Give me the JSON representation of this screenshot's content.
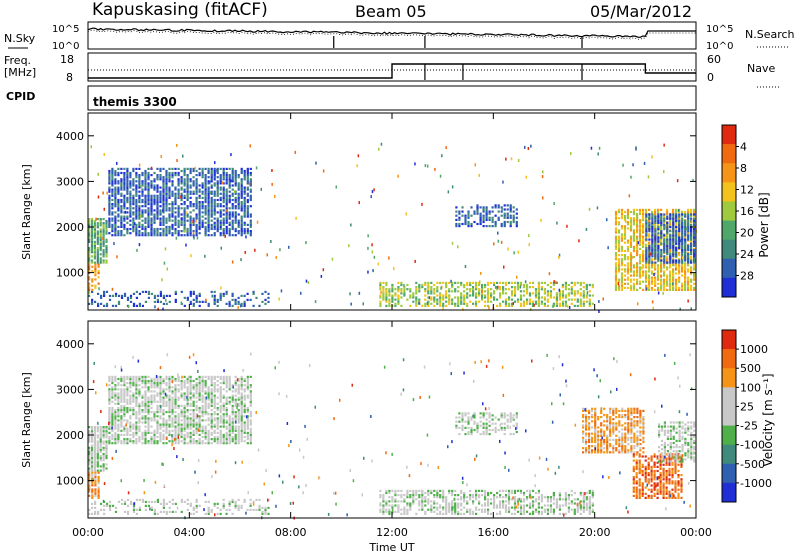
{
  "header": {
    "station": "Kapuskasing (fitACF)",
    "beam": "Beam 05",
    "date": "05/Mar/2012"
  },
  "noise_panel": {
    "left_label": "N.Sky",
    "right_label": "N.Search",
    "left_ticks": [
      "10^5",
      "10^0"
    ],
    "right_ticks": [
      "10^5",
      "10^0"
    ]
  },
  "freq_panel": {
    "left_label_1": "Freq.",
    "left_label_2": "[MHz]",
    "right_label": "Nave",
    "left_ticks": [
      "18",
      "8"
    ],
    "right_ticks": [
      "60",
      "0"
    ]
  },
  "cpid_panel": {
    "label": "CPID",
    "program": "themis 3300"
  },
  "colors": {
    "power_scale": [
      "#1f2fd6",
      "#2e5fb0",
      "#3f8a7a",
      "#4fa86a",
      "#9fc93e",
      "#f3c21c",
      "#f59416",
      "#f06a10",
      "#e02a10"
    ],
    "velocity_scale": [
      "#1f2fd6",
      "#2e5fb0",
      "#3f8a7a",
      "#4fb04a",
      "#c8c8c8",
      "#c8c8c8",
      "#f59416",
      "#f06a10",
      "#e02a10"
    ]
  },
  "chart_data": [
    {
      "type": "heatmap",
      "name": "power",
      "ylabel": "Slant Range [km]",
      "ylim": [
        180,
        4500
      ],
      "yticks": [
        "1000",
        "2000",
        "3000",
        "4000"
      ],
      "colorbar_label": "Power [dB]",
      "colorbar_ticks": [
        "4",
        "8",
        "12",
        "16",
        "20",
        "24",
        "28"
      ],
      "regions": [
        {
          "t0": 0.0,
          "t1": 7.2,
          "r0": 250,
          "r1": 600,
          "color_index": 1,
          "density": 0.35
        },
        {
          "t0": 0.0,
          "t1": 0.8,
          "r0": 1200,
          "r1": 2200,
          "color_index": 3,
          "density": 0.85
        },
        {
          "t0": 0.8,
          "t1": 6.5,
          "r0": 1800,
          "r1": 3300,
          "color_index": 1,
          "density": 0.75
        },
        {
          "t0": 0.0,
          "t1": 0.5,
          "r0": 600,
          "r1": 1200,
          "color_index": 6,
          "density": 0.6
        },
        {
          "t0": 11.5,
          "t1": 20.0,
          "r0": 250,
          "r1": 800,
          "color_index": 4,
          "density": 0.6
        },
        {
          "t0": 14.5,
          "t1": 17.0,
          "r0": 2000,
          "r1": 2500,
          "color_index": 1,
          "density": 0.5
        },
        {
          "t0": 20.8,
          "t1": 24.0,
          "r0": 600,
          "r1": 2400,
          "color_index": 5,
          "density": 0.75
        },
        {
          "t0": 22.0,
          "t1": 24.0,
          "r0": 1200,
          "r1": 2300,
          "color_index": 1,
          "density": 0.8
        }
      ]
    },
    {
      "type": "heatmap",
      "name": "velocity",
      "xlabel": "Time UT",
      "xticks": [
        "00:00",
        "04:00",
        "08:00",
        "12:00",
        "16:00",
        "20:00",
        "00:00"
      ],
      "ylabel": "Slant Range [km]",
      "ylim": [
        180,
        4500
      ],
      "yticks": [
        "1000",
        "2000",
        "3000",
        "4000"
      ],
      "colorbar_label": "Velocity [m s⁻¹]",
      "colorbar_ticks": [
        "1000",
        "500",
        "100",
        "25",
        "-25",
        "-100",
        "-500",
        "-1000"
      ],
      "regions": [
        {
          "t0": 0.0,
          "t1": 7.2,
          "r0": 250,
          "r1": 600,
          "color_index": 4,
          "density": 0.35
        },
        {
          "t0": 0.0,
          "t1": 0.8,
          "r0": 1200,
          "r1": 2200,
          "color_index": 4,
          "density": 0.85
        },
        {
          "t0": 0.8,
          "t1": 6.5,
          "r0": 1800,
          "r1": 3300,
          "color_index": 4,
          "density": 0.75
        },
        {
          "t0": 0.0,
          "t1": 0.5,
          "r0": 600,
          "r1": 1200,
          "color_index": 6,
          "density": 0.8
        },
        {
          "t0": 11.5,
          "t1": 20.0,
          "r0": 250,
          "r1": 800,
          "color_index": 4,
          "density": 0.6
        },
        {
          "t0": 14.5,
          "t1": 17.0,
          "r0": 2000,
          "r1": 2500,
          "color_index": 4,
          "density": 0.5
        },
        {
          "t0": 19.5,
          "t1": 22.0,
          "r0": 1600,
          "r1": 2600,
          "color_index": 6,
          "density": 0.7
        },
        {
          "t0": 21.5,
          "t1": 23.5,
          "r0": 600,
          "r1": 1600,
          "color_index": 7,
          "density": 0.7
        },
        {
          "t0": 22.5,
          "t1": 24.0,
          "r0": 1400,
          "r1": 2300,
          "color_index": 4,
          "density": 0.6
        }
      ]
    }
  ]
}
